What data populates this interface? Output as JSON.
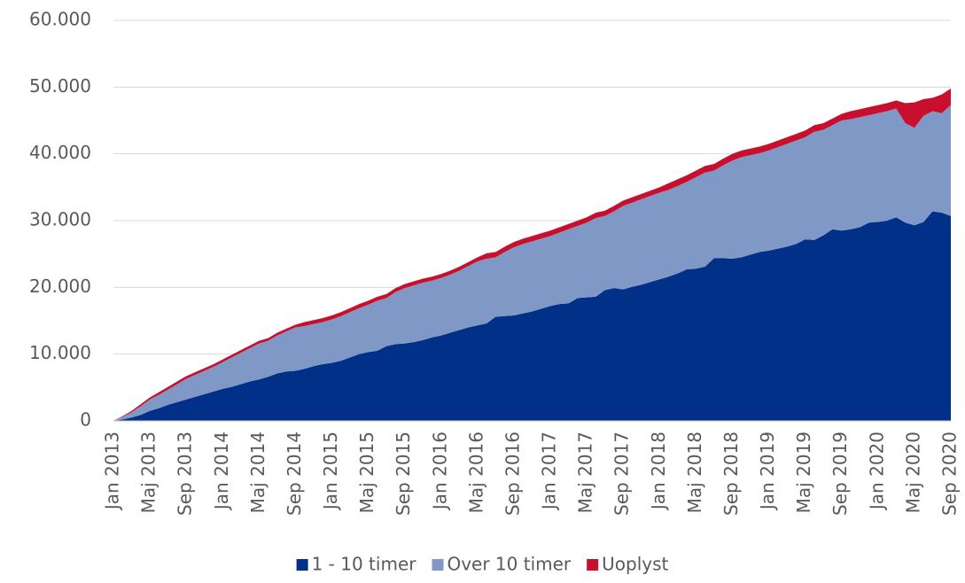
{
  "chart_data": {
    "type": "stacked_area",
    "categories": [
      "Jan 2013",
      null,
      null,
      null,
      "Maj 2013",
      null,
      null,
      null,
      "Sep 2013",
      null,
      null,
      null,
      "Jan 2014",
      null,
      null,
      null,
      "Maj 2014",
      null,
      null,
      null,
      "Sep 2014",
      null,
      null,
      null,
      "Jan 2015",
      null,
      null,
      null,
      "Maj 2015",
      null,
      null,
      null,
      "Sep 2015",
      null,
      null,
      null,
      "Jan 2016",
      null,
      null,
      null,
      "Maj 2016",
      null,
      null,
      null,
      "Sep 2016",
      null,
      null,
      null,
      "Jan 2017",
      null,
      null,
      null,
      "Maj 2017",
      null,
      null,
      null,
      "Sep 2017",
      null,
      null,
      null,
      "Jan 2018",
      null,
      null,
      null,
      "Maj 2018",
      null,
      null,
      null,
      "Sep 2018",
      null,
      null,
      null,
      "Jan 2019",
      null,
      null,
      null,
      "Maj 2019",
      null,
      null,
      null,
      "Sep 2019",
      null,
      null,
      null,
      "Jan 2020",
      null,
      null,
      null,
      "Maj 2020",
      null,
      null,
      null,
      "Sep 2020"
    ],
    "series": [
      {
        "name": "1 - 10 timer",
        "color": "#003087",
        "values": [
          0,
          200,
          500,
          900,
          1500,
          1900,
          2400,
          2800,
          3200,
          3600,
          4000,
          4400,
          4800,
          5100,
          5500,
          5900,
          6200,
          6600,
          7100,
          7400,
          7500,
          7800,
          8200,
          8500,
          8700,
          9000,
          9500,
          10000,
          10300,
          10500,
          11200,
          11500,
          11600,
          11800,
          12100,
          12500,
          12800,
          13200,
          13600,
          14000,
          14300,
          14600,
          15600,
          15700,
          15800,
          16100,
          16400,
          16800,
          17200,
          17500,
          17600,
          18400,
          18500,
          18600,
          19600,
          19900,
          19700,
          20100,
          20400,
          20800,
          21200,
          21600,
          22100,
          22700,
          22800,
          23100,
          24400,
          24400,
          24300,
          24500,
          24900,
          25300,
          25500,
          25800,
          26100,
          26500,
          27200,
          27100,
          27800,
          28700,
          28500,
          28700,
          29000,
          29700,
          29800,
          30000,
          30500,
          29700,
          29300,
          29800,
          31400,
          31200,
          30700
        ]
      },
      {
        "name": "Over 10 timer",
        "color": "#7f98c6",
        "values": [
          0,
          400,
          800,
          1300,
          1700,
          2000,
          2300,
          2700,
          3100,
          3300,
          3500,
          3700,
          4000,
          4400,
          4700,
          5000,
          5400,
          5400,
          5700,
          6000,
          6500,
          6400,
          6300,
          6300,
          6500,
          6700,
          6800,
          6900,
          7100,
          7500,
          7200,
          7800,
          8300,
          8500,
          8600,
          8500,
          8600,
          8700,
          8900,
          9200,
          9600,
          9700,
          8900,
          9600,
          10200,
          10400,
          10500,
          10500,
          10500,
          10700,
          11100,
          10800,
          11200,
          11800,
          11100,
          11500,
          12500,
          12600,
          12800,
          12900,
          13000,
          13000,
          13100,
          13100,
          13700,
          14100,
          13100,
          13900,
          14700,
          15000,
          14900,
          14800,
          15000,
          15200,
          15400,
          15500,
          15300,
          16200,
          15800,
          15600,
          16500,
          16500,
          16500,
          16100,
          16300,
          16400,
          16300,
          14900,
          14600,
          15900,
          15000,
          14900,
          16600
        ]
      },
      {
        "name": "Uoplyst",
        "color": "#c8102e",
        "values": [
          0,
          100,
          200,
          300,
          300,
          400,
          400,
          400,
          400,
          400,
          400,
          400,
          400,
          400,
          400,
          400,
          400,
          400,
          400,
          400,
          400,
          600,
          600,
          600,
          600,
          600,
          600,
          600,
          600,
          600,
          600,
          600,
          600,
          600,
          600,
          600,
          600,
          600,
          600,
          600,
          600,
          800,
          800,
          800,
          800,
          800,
          800,
          800,
          800,
          800,
          800,
          800,
          800,
          800,
          800,
          800,
          800,
          800,
          800,
          800,
          800,
          1000,
          1000,
          1000,
          1000,
          1000,
          1000,
          1000,
          1000,
          1000,
          1000,
          1000,
          1000,
          1000,
          1000,
          1000,
          1000,
          1000,
          1000,
          1000,
          1000,
          1200,
          1200,
          1200,
          1200,
          1200,
          1200,
          3000,
          3800,
          2500,
          2000,
          2800,
          2500
        ]
      }
    ],
    "ylim": [
      0,
      60000
    ],
    "yticks": [
      0,
      {
        "value": 10000,
        "label": "10.000"
      },
      {
        "value": 20000,
        "label": "20.000"
      },
      {
        "value": 30000,
        "label": "30.000"
      },
      {
        "value": 40000,
        "label": "40.000"
      },
      {
        "value": 50000,
        "label": "50.000"
      },
      {
        "value": 60000,
        "label": "60.000"
      }
    ],
    "grid": true,
    "legend": "bottom"
  }
}
